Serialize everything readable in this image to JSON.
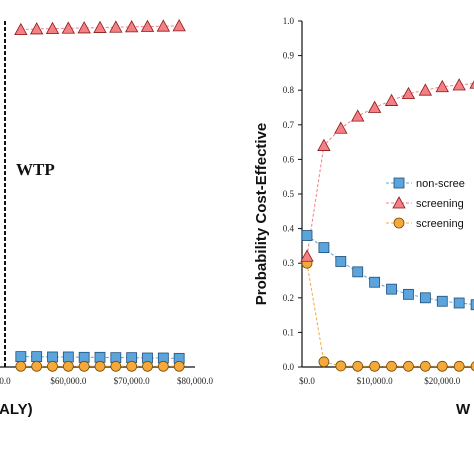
{
  "chart_data": [
    {
      "type": "line",
      "title": "",
      "annotation": "WTP",
      "xlabel": "ALY)",
      "ylabel": "",
      "x": [
        52500,
        55000,
        57500,
        60000,
        62500,
        65000,
        67500,
        70000,
        72500,
        75000,
        77500
      ],
      "xlim": [
        50000,
        80000
      ],
      "ylim": [
        0,
        1
      ],
      "x_tick_labels": [
        "0.0",
        "$60,000.0",
        "$70,000.0",
        "$80,000.0"
      ],
      "wtp_line_x": 50000,
      "grid": false,
      "series": [
        {
          "values": [
            0.975,
            0.977,
            0.978,
            0.979,
            0.98,
            0.981,
            0.982,
            0.983,
            0.984,
            0.985,
            0.986
          ]
        },
        {
          "values": [
            0.03,
            0.03,
            0.029,
            0.029,
            0.028,
            0.028,
            0.027,
            0.027,
            0.026,
            0.026,
            0.025
          ]
        },
        {
          "values": [
            0.002,
            0.002,
            0.002,
            0.002,
            0.002,
            0.002,
            0.002,
            0.002,
            0.002,
            0.002,
            0.002
          ]
        }
      ],
      "colors": {
        "screening": "#f47f84",
        "non_screening": "#5ba4dc",
        "other": "#f4a93c"
      }
    },
    {
      "type": "line",
      "title": "",
      "xlabel": "W",
      "ylabel": "Probability Cost-Effective",
      "x": [
        0,
        2500,
        5000,
        7500,
        10000,
        12500,
        15000,
        17500,
        20000,
        22500,
        25000
      ],
      "xlim": [
        0,
        27500
      ],
      "ylim": [
        0,
        1
      ],
      "y_ticks": [
        "0.0",
        "0.1",
        "0.2",
        "0.3",
        "0.4",
        "0.5",
        "0.6",
        "0.7",
        "0.8",
        "0.9",
        "1.0"
      ],
      "x_tick_labels": [
        "$0.0",
        "$10,000.0",
        "$20,000.0"
      ],
      "grid": false,
      "legend_position": "right",
      "series": [
        {
          "name": "non-scree",
          "marker": "square",
          "color": "#5ba4dc",
          "values": [
            0.38,
            0.345,
            0.305,
            0.275,
            0.245,
            0.225,
            0.21,
            0.2,
            0.19,
            0.185,
            0.18
          ]
        },
        {
          "name": "screening",
          "marker": "triangle",
          "color": "#f47f84",
          "values": [
            0.32,
            0.64,
            0.69,
            0.725,
            0.75,
            0.77,
            0.79,
            0.8,
            0.81,
            0.815,
            0.82
          ]
        },
        {
          "name": "screening",
          "marker": "circle",
          "color": "#f4a93c",
          "values": [
            0.3,
            0.015,
            0.003,
            0.002,
            0.002,
            0.002,
            0.002,
            0.002,
            0.002,
            0.002,
            0.002
          ]
        }
      ]
    }
  ]
}
